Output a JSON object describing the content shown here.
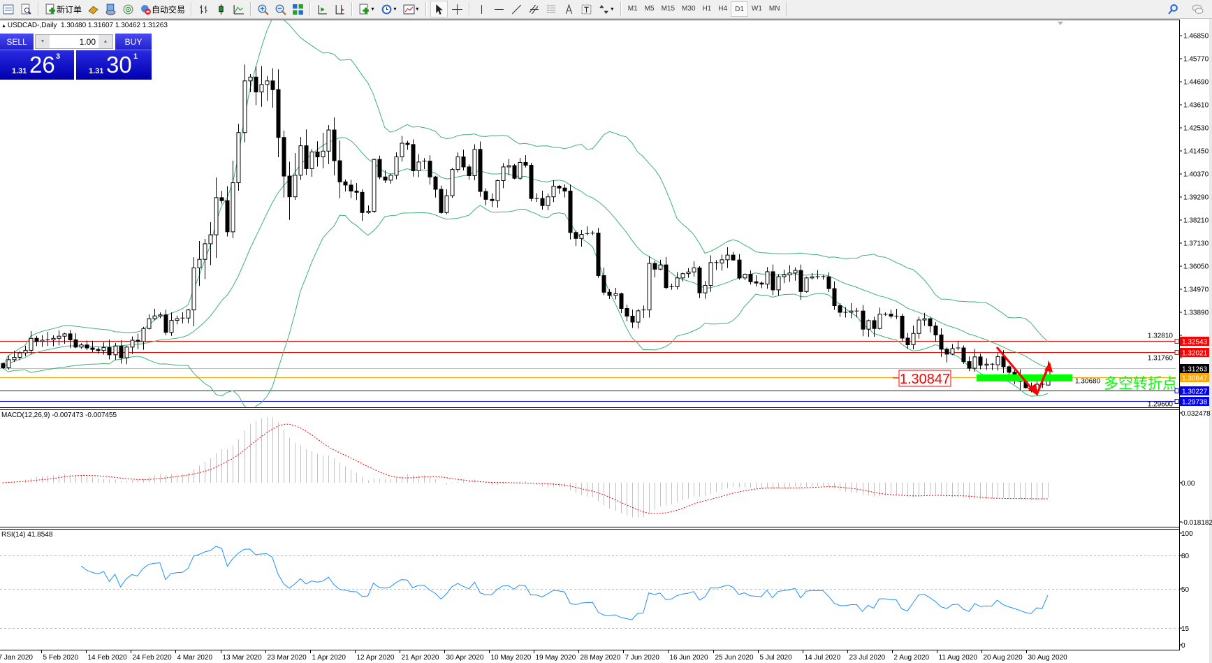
{
  "toolbar": {
    "new_order": "新订单",
    "auto_trading": "自动交易",
    "timeframes": [
      "M1",
      "M5",
      "M15",
      "M30",
      "H1",
      "H4",
      "D1",
      "W1",
      "MN"
    ],
    "active_timeframe": "D1"
  },
  "chart": {
    "symbol_info": "USDCAD-,Daily",
    "ohlc": "1.30480 1.31607 1.30462 1.31263"
  },
  "trade_panel": {
    "sell_label": "SELL",
    "buy_label": "BUY",
    "lot": "1.00",
    "sell_price": {
      "prefix": "1.31",
      "big": "26",
      "sup": "3"
    },
    "buy_price": {
      "prefix": "1.31",
      "big": "30",
      "sup": "1"
    }
  },
  "price_axis": {
    "ticks": [
      "1.46850",
      "1.45770",
      "1.44690",
      "1.43610",
      "1.42530",
      "1.41450",
      "1.40370",
      "1.39290",
      "1.38210",
      "1.37130",
      "1.36050",
      "1.34970",
      "1.33890",
      "1.32810",
      "1.31760",
      "1.30680",
      "1.29600"
    ]
  },
  "levels": [
    {
      "price": "1.32543",
      "color": "#ff0000",
      "label_bg": "#ff0000"
    },
    {
      "price": "1.32021",
      "color": "#ff0000",
      "label_bg": "#ff0000"
    },
    {
      "price": "1.31263",
      "color": "#c0c0c0",
      "label_bg": "#000000"
    },
    {
      "price": "1.30847",
      "color": "#ffa500",
      "label_bg": "#ffa500"
    },
    {
      "price": "1.30227",
      "color": "#0000ff",
      "label_bg": "#0000ff"
    },
    {
      "price": "1.29738",
      "color": "#0000ff",
      "label_bg": "#0000ff"
    }
  ],
  "annotations": {
    "price_box": "1.30847",
    "price_box_color": "#ff0000",
    "turning_point_text": "多空转折点",
    "text_color": "#00ff00",
    "zone_color": "#00ff00",
    "arrow_color": "#ff0000"
  },
  "indicators": {
    "macd": {
      "label": "MACD(12,26,9) -0.007473 -0.007455",
      "axis": [
        "0.032478",
        "0.00",
        "-0.018182"
      ],
      "histogram_color": "#c0c0c0",
      "signal_color": "#ff0000"
    },
    "rsi": {
      "label": "RSI(14) 41.8548",
      "axis": [
        "100",
        "80",
        "50",
        "15",
        "0"
      ],
      "color": "#1e90ff"
    }
  },
  "date_axis": [
    "7 Jan 2020",
    "5 Feb 2020",
    "14 Feb 2020",
    "24 Feb 2020",
    "4 Mar 2020",
    "13 Mar 2020",
    "23 Mar 2020",
    "1 Apr 2020",
    "12 Apr 2020",
    "21 Apr 2020",
    "30 Apr 2020",
    "10 May 2020",
    "19 May 2020",
    "28 May 2020",
    "7 Jun 2020",
    "16 Jun 2020",
    "25 Jun 2020",
    "5 Jul 2020",
    "14 Jul 2020",
    "23 Jul 2020",
    "2 Aug 2020",
    "11 Aug 2020",
    "20 Aug 2020",
    "30 Aug 2020"
  ],
  "chart_data": {
    "type": "candlestick",
    "symbol": "USDCAD",
    "timeframe": "D1",
    "bollinger_color": "#3cb371",
    "ylim": [
      1.296,
      1.4685
    ],
    "close": [
      1.3129,
      1.3167,
      1.3178,
      1.3199,
      1.3211,
      1.3267,
      1.3252,
      1.3258,
      1.326,
      1.3267,
      1.3277,
      1.3288,
      1.326,
      1.3226,
      1.3236,
      1.3222,
      1.3215,
      1.321,
      1.3224,
      1.319,
      1.3231,
      1.3176,
      1.3226,
      1.3258,
      1.3252,
      1.3313,
      1.3359,
      1.3372,
      1.3377,
      1.3295,
      1.3351,
      1.3359,
      1.3362,
      1.34,
      1.3597,
      1.3637,
      1.371,
      1.3752,
      1.3926,
      1.3912,
      1.3766,
      1.3996,
      1.4231,
      1.4473,
      1.4491,
      1.4421,
      1.4456,
      1.4473,
      1.4432,
      1.4208,
      1.4027,
      1.393,
      1.4031,
      1.4169,
      1.4062,
      1.414,
      1.4117,
      1.4144,
      1.4243,
      1.4099,
      1.4,
      1.3985,
      1.3957,
      1.3951,
      1.3856,
      1.3862,
      1.4105,
      1.4023,
      1.4008,
      1.4031,
      1.4117,
      1.4181,
      1.4175,
      1.4052,
      1.4093,
      1.4097,
      1.4023,
      1.3965,
      1.3856,
      1.3935,
      1.4058,
      1.4117,
      1.407,
      1.4029,
      1.4152,
      1.3955,
      1.3918,
      1.3912,
      1.4006,
      1.407,
      1.4076,
      1.4017,
      1.4091,
      1.4078,
      1.3922,
      1.3922,
      1.3889,
      1.393,
      1.398,
      1.3971,
      1.3957,
      1.3763,
      1.3735,
      1.3754,
      1.3758,
      1.376,
      1.3561,
      1.3483,
      1.3468,
      1.3476,
      1.3407,
      1.3371,
      1.3343,
      1.3396,
      1.34,
      1.3618,
      1.3591,
      1.3611,
      1.3505,
      1.3509,
      1.355,
      1.357,
      1.3578,
      1.3597,
      1.348,
      1.3515,
      1.3622,
      1.362,
      1.3635,
      1.3657,
      1.3634,
      1.355,
      1.3567,
      1.3532,
      1.3526,
      1.3521,
      1.3579,
      1.3494,
      1.3556,
      1.3564,
      1.3573,
      1.3585,
      1.3486,
      1.355,
      1.3555,
      1.3556,
      1.3555,
      1.35,
      1.342,
      1.3389,
      1.3389,
      1.3395,
      1.3395,
      1.331,
      1.335,
      1.3313,
      1.338,
      1.338,
      1.3371,
      1.3371,
      1.3268,
      1.3237,
      1.329,
      1.3353,
      1.3359,
      1.3325,
      1.3283,
      1.3216,
      1.3193,
      1.3219,
      1.3222,
      1.3158,
      1.3127,
      1.318,
      1.3141,
      1.3146,
      1.3143,
      1.3181,
      1.3134,
      1.3108,
      1.3088,
      1.3065,
      1.3036,
      1.3022,
      1.3052,
      1.3048,
      1.31263
    ],
    "last_bar": {
      "open": 1.3048,
      "high": 1.31607,
      "low": 1.30462,
      "close": 1.31263
    }
  }
}
